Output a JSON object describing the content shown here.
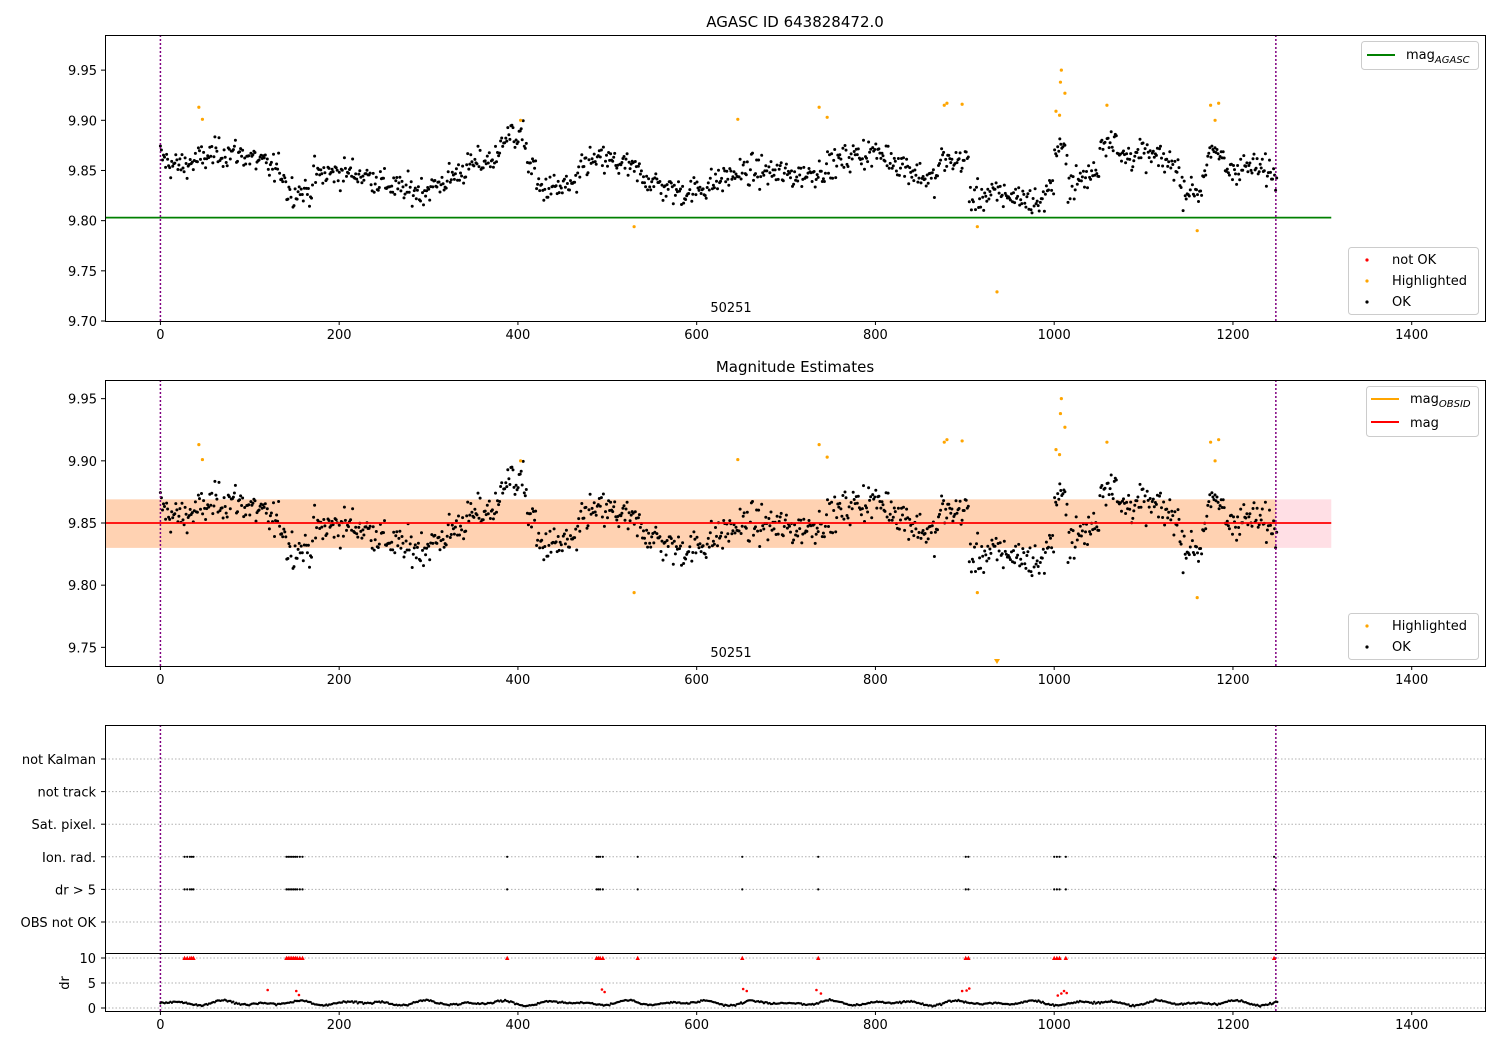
{
  "chart_data": [
    {
      "type": "scatter",
      "title": "AGASC ID 643828472.0",
      "xlim": [
        -62,
        1482
      ],
      "ylim": [
        9.7,
        9.985
      ],
      "xticks": [
        "0",
        "200",
        "400",
        "600",
        "800",
        "1000",
        "1200",
        "1400"
      ],
      "yticks": [
        "9.70",
        "9.75",
        "9.80",
        "9.85",
        "9.90",
        "9.95"
      ],
      "annotation": "50251",
      "vlines": [
        0,
        1248
      ],
      "reference_line": {
        "value": 9.803,
        "x_end": 1310
      },
      "legend_lines": [
        {
          "label": "mag",
          "sub": "AGASC",
          "color": "#008000"
        }
      ],
      "legend_points": [
        {
          "label": "not OK",
          "color": "#ff0000"
        },
        {
          "label": "Highlighted",
          "color": "#ffa500"
        },
        {
          "label": "OK",
          "color": "#000000"
        }
      ],
      "highlighted_points": [
        [
          43,
          9.913
        ],
        [
          47,
          9.901
        ],
        [
          403,
          9.9
        ],
        [
          530,
          9.794
        ],
        [
          646,
          9.901
        ],
        [
          737,
          9.913
        ],
        [
          746,
          9.903
        ],
        [
          877,
          9.915
        ],
        [
          880,
          9.917
        ],
        [
          897,
          9.916
        ],
        [
          914,
          9.794
        ],
        [
          936,
          9.729
        ],
        [
          1002,
          9.909
        ],
        [
          1006,
          9.905
        ],
        [
          1007,
          9.938
        ],
        [
          1008,
          9.95
        ],
        [
          1012,
          9.927
        ],
        [
          1059,
          9.915
        ],
        [
          1160,
          9.79
        ],
        [
          1175,
          9.915
        ],
        [
          1180,
          9.9
        ],
        [
          1184,
          9.917
        ]
      ]
    },
    {
      "type": "scatter",
      "title": "Magnitude Estimates",
      "xlim": [
        -62,
        1482
      ],
      "ylim": [
        9.735,
        9.965
      ],
      "xticks": [
        "0",
        "200",
        "400",
        "600",
        "800",
        "1000",
        "1200",
        "1400"
      ],
      "yticks": [
        "9.75",
        "9.80",
        "9.85",
        "9.90",
        "9.95"
      ],
      "annotation": "50251",
      "vlines": [
        0,
        1248
      ],
      "band": {
        "low": 9.83,
        "high": 9.869,
        "x_end": 1310
      },
      "obsid_band": {
        "low": 9.83,
        "high": 9.869,
        "x_end": 1248
      },
      "mean_line": {
        "value": 9.85,
        "x_end": 1310
      },
      "legend_lines": [
        {
          "label": "mag",
          "sub": "OBSID",
          "color": "#ffa500"
        },
        {
          "label": "mag",
          "sub": "",
          "color": "#ff0000"
        }
      ],
      "legend_points": [
        {
          "label": "Highlighted",
          "color": "#ffa500"
        },
        {
          "label": "OK",
          "color": "#000000"
        }
      ],
      "highlighted_points": [
        [
          43,
          9.913
        ],
        [
          47,
          9.901
        ],
        [
          403,
          9.9
        ],
        [
          530,
          9.794
        ],
        [
          646,
          9.901
        ],
        [
          737,
          9.913
        ],
        [
          746,
          9.903
        ],
        [
          877,
          9.915
        ],
        [
          880,
          9.917
        ],
        [
          897,
          9.916
        ],
        [
          914,
          9.794
        ],
        [
          1002,
          9.909
        ],
        [
          1006,
          9.905
        ],
        [
          1007,
          9.938
        ],
        [
          1008,
          9.95
        ],
        [
          1012,
          9.927
        ],
        [
          1059,
          9.915
        ],
        [
          1160,
          9.79
        ],
        [
          1175,
          9.915
        ],
        [
          1180,
          9.9
        ],
        [
          1184,
          9.917
        ]
      ],
      "offscale_markers": [
        936
      ]
    },
    {
      "type": "scatter",
      "title": "",
      "xlim": [
        -62,
        1482
      ],
      "vlines": [
        0,
        1248
      ],
      "flag_categories": [
        "not Kalman",
        "not track",
        "Sat. pixel.",
        "Ion. rad.",
        "dr > 5",
        "OBS not OK"
      ],
      "flag_positions": [
        27,
        30,
        33,
        35,
        37,
        141,
        143,
        145,
        147,
        149,
        151,
        153,
        156,
        159,
        388,
        488,
        490,
        492,
        495,
        534,
        651,
        736,
        901,
        904,
        1000,
        1003,
        1006,
        1013,
        1246
      ],
      "dr_ylabel": "dr",
      "dr_yticks": [
        "0",
        "5",
        "10"
      ],
      "dr_ylim": [
        -0.6,
        11.0
      ],
      "dr_red_points": [
        [
          120,
          3.6
        ],
        [
          152,
          3.4
        ],
        [
          155,
          2.6
        ],
        [
          494,
          3.7
        ],
        [
          497,
          3.2
        ],
        [
          652,
          3.8
        ],
        [
          656,
          3.4
        ],
        [
          734,
          3.6
        ],
        [
          739,
          2.9
        ],
        [
          897,
          3.4
        ],
        [
          902,
          3.5
        ],
        [
          905,
          3.9
        ],
        [
          1004,
          2.5
        ],
        [
          1008,
          2.9
        ],
        [
          1011,
          3.4
        ],
        [
          1014,
          3.0
        ]
      ]
    }
  ]
}
